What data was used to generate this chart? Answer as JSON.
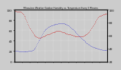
{
  "title": "Milwaukee Weather Outdoor Humidity vs. Temperature Every 5 Minutes",
  "bg_color": "#cccccc",
  "plot_bg": "#cccccc",
  "grid_color": "#ffffff",
  "red_color": "#cc0000",
  "blue_color": "#3333cc",
  "xlim": [
    0,
    288
  ],
  "ylim_left": [
    0,
    100
  ],
  "ylim_right": [
    20,
    100
  ],
  "humidity_x": [
    0,
    2,
    4,
    6,
    8,
    10,
    12,
    14,
    16,
    18,
    20,
    22,
    24,
    26,
    28,
    30,
    32,
    34,
    36,
    38,
    40,
    42,
    44,
    46,
    48,
    50,
    52,
    54,
    56,
    58,
    60,
    62,
    64,
    66,
    68,
    70,
    72,
    74,
    76,
    78,
    80,
    82,
    84,
    86,
    88,
    90,
    92,
    94,
    96,
    98,
    100,
    102,
    104,
    106,
    108,
    110,
    112,
    114,
    116,
    118,
    120,
    122,
    124,
    126,
    128,
    130,
    132,
    134,
    136,
    138,
    140,
    142,
    144,
    146,
    148,
    150,
    152,
    154,
    156,
    158,
    160,
    162,
    164,
    166,
    168,
    170,
    172,
    174,
    176,
    178,
    180,
    182,
    184,
    186,
    188,
    190,
    192,
    194,
    196,
    198,
    200,
    202,
    204,
    206,
    208,
    210,
    212,
    214,
    216,
    218,
    220,
    222,
    224,
    226,
    228,
    230,
    232,
    234,
    236,
    238,
    240,
    242,
    244,
    246,
    248,
    250,
    252,
    254,
    256,
    258,
    260,
    262,
    264,
    266,
    268,
    270,
    272,
    274,
    276,
    278,
    280,
    282,
    284,
    286,
    288
  ],
  "humidity_y": [
    98,
    98,
    98,
    98,
    97,
    97,
    97,
    97,
    97,
    96,
    96,
    95,
    94,
    93,
    91,
    89,
    87,
    85,
    82,
    79,
    76,
    73,
    70,
    67,
    65,
    63,
    61,
    59,
    57,
    55,
    53,
    51,
    50,
    49,
    48,
    47,
    47,
    46,
    46,
    46,
    46,
    46,
    47,
    47,
    48,
    48,
    49,
    50,
    50,
    51,
    51,
    52,
    52,
    53,
    53,
    54,
    54,
    55,
    55,
    56,
    56,
    57,
    57,
    58,
    58,
    59,
    59,
    59,
    59,
    59,
    59,
    59,
    58,
    58,
    57,
    57,
    56,
    56,
    55,
    55,
    54,
    54,
    54,
    53,
    53,
    52,
    52,
    52,
    51,
    51,
    51,
    50,
    50,
    50,
    49,
    49,
    49,
    49,
    49,
    49,
    49,
    49,
    49,
    49,
    49,
    49,
    49,
    50,
    50,
    51,
    51,
    52,
    53,
    54,
    55,
    57,
    58,
    60,
    62,
    64,
    66,
    68,
    70,
    72,
    74,
    76,
    78,
    80,
    82,
    84,
    86,
    87,
    88,
    89,
    89,
    90,
    90,
    91,
    91,
    91,
    92,
    92,
    92,
    93,
    93
  ],
  "temp_x": [
    0,
    2,
    4,
    6,
    8,
    10,
    12,
    14,
    16,
    18,
    20,
    22,
    24,
    26,
    28,
    30,
    32,
    34,
    36,
    38,
    40,
    42,
    44,
    46,
    48,
    50,
    52,
    54,
    56,
    58,
    60,
    62,
    64,
    66,
    68,
    70,
    72,
    74,
    76,
    78,
    80,
    82,
    84,
    86,
    88,
    90,
    92,
    94,
    96,
    98,
    100,
    102,
    104,
    106,
    108,
    110,
    112,
    114,
    116,
    118,
    120,
    122,
    124,
    126,
    128,
    130,
    132,
    134,
    136,
    138,
    140,
    142,
    144,
    146,
    148,
    150,
    152,
    154,
    156,
    158,
    160,
    162,
    164,
    166,
    168,
    170,
    172,
    174,
    176,
    178,
    180,
    182,
    184,
    186,
    188,
    190,
    192,
    194,
    196,
    198,
    200,
    202,
    204,
    206,
    208,
    210,
    212,
    214,
    216,
    218,
    220,
    222,
    224,
    226,
    228,
    230,
    232,
    234,
    236,
    238,
    240,
    242,
    244,
    246,
    248,
    250,
    252,
    254,
    256,
    258,
    260,
    262,
    264,
    266,
    268,
    270,
    272,
    274,
    276,
    278,
    280,
    282,
    284,
    286,
    288
  ],
  "temp_y": [
    38,
    38,
    37,
    37,
    36,
    36,
    36,
    35,
    35,
    35,
    35,
    35,
    35,
    35,
    35,
    35,
    35,
    35,
    35,
    35,
    35,
    35,
    36,
    36,
    36,
    36,
    37,
    37,
    38,
    38,
    39,
    40,
    41,
    42,
    44,
    46,
    48,
    50,
    52,
    54,
    56,
    58,
    60,
    62,
    64,
    66,
    67,
    68,
    69,
    70,
    71,
    72,
    73,
    74,
    74,
    75,
    75,
    76,
    76,
    76,
    77,
    77,
    77,
    78,
    78,
    78,
    78,
    78,
    79,
    79,
    79,
    79,
    79,
    79,
    79,
    79,
    79,
    79,
    78,
    78,
    78,
    77,
    77,
    76,
    76,
    75,
    74,
    73,
    72,
    71,
    70,
    69,
    68,
    67,
    66,
    65,
    64,
    63,
    62,
    61,
    60,
    59,
    58,
    57,
    56,
    55,
    54,
    53,
    52,
    51,
    50,
    49,
    48,
    48,
    47,
    46,
    46,
    45,
    44,
    44,
    43,
    43,
    42,
    42,
    42,
    41,
    41,
    41,
    41,
    40,
    40,
    40,
    39,
    39,
    39,
    39,
    38,
    38,
    38,
    38,
    38,
    38,
    38,
    38,
    38
  ],
  "left_yticks": [
    0,
    20,
    40,
    60,
    80,
    100
  ],
  "right_yticks": [
    20,
    40,
    60,
    80,
    100
  ],
  "marker_size": 0.8,
  "linewidth": 0.0,
  "temp_scale_factor": 1.25
}
